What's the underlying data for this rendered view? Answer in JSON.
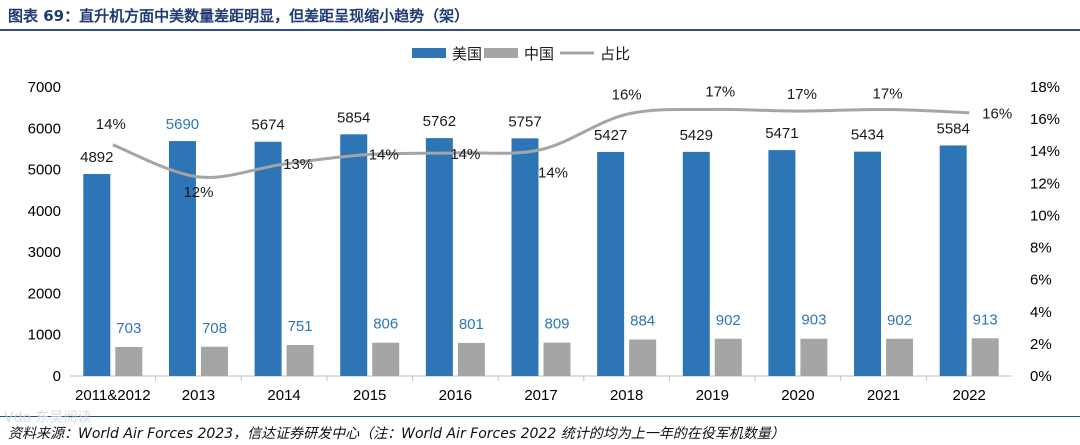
{
  "header": {
    "title": "图表 69：直升机方面中美数量差距明显，但差距呈现缩小趋势（架）"
  },
  "footer": {
    "source": "资料来源：World Air Forces 2023，信达证券研发中心（注：World Air Forces 2022 统计的均为上一年的在役军机数量）",
    "watermark": "Vdo 东吴阅读"
  },
  "colors": {
    "us": "#2e75b6",
    "china": "#a5a5a5",
    "ratio": "#a5a5a5",
    "us_label": "#2e75b6",
    "china_label": "#2e75b6",
    "axis_text": "#000000",
    "title": "#1f3b73"
  },
  "chart_data": {
    "type": "bar",
    "categories": [
      "2011&2012",
      "2013",
      "2014",
      "2015",
      "2016",
      "2017",
      "2018",
      "2019",
      "2020",
      "2021",
      "2022"
    ],
    "series": [
      {
        "name": "美国",
        "type": "bar",
        "axis": "left",
        "values": [
          4892,
          5690,
          5674,
          5854,
          5762,
          5757,
          5427,
          5429,
          5471,
          5434,
          5584
        ]
      },
      {
        "name": "中国",
        "type": "bar",
        "axis": "left",
        "values": [
          703,
          708,
          751,
          806,
          801,
          809,
          884,
          902,
          903,
          902,
          913
        ]
      },
      {
        "name": "占比",
        "type": "line",
        "axis": "right",
        "values": [
          14.4,
          12.4,
          13.2,
          13.8,
          13.9,
          14.1,
          16.3,
          16.6,
          16.5,
          16.6,
          16.4
        ],
        "labels": [
          "14%",
          "12%",
          "13%",
          "14%",
          "14%",
          "14%",
          "16%",
          "17%",
          "17%",
          "17%",
          "16%"
        ]
      }
    ],
    "legend": [
      "美国",
      "中国",
      "占比"
    ],
    "legend_position": "top-center",
    "yleft": {
      "min": 0,
      "max": 7000,
      "step": 1000,
      "ticks": [
        "0",
        "1000",
        "2000",
        "3000",
        "4000",
        "5000",
        "6000",
        "7000"
      ]
    },
    "yright": {
      "min": 0,
      "max": 18,
      "step": 2,
      "ticks": [
        "0%",
        "2%",
        "4%",
        "6%",
        "8%",
        "10%",
        "12%",
        "14%",
        "16%",
        "18%"
      ]
    },
    "grid": false
  }
}
